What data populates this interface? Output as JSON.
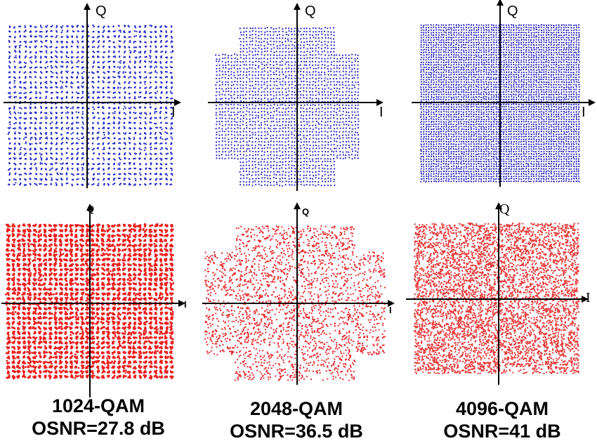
{
  "figure": {
    "background": "#ffffff",
    "axis_color": "#000000",
    "axis_labels": {
      "x": "I",
      "y": "Q"
    }
  },
  "chart_data": [
    {
      "type": "scatter",
      "title": "",
      "xlabel": "I",
      "ylabel": "Q",
      "modulation": "1024-QAM",
      "shape": "square",
      "grid_size": 32,
      "series": [
        {
          "name": "",
          "color": "#1f24c8",
          "kind": "ideal-constellation",
          "dots_per_point": 3
        }
      ],
      "caption": {
        "modulation": "1024-QAM",
        "osnr": "OSNR=27.8 dB"
      }
    },
    {
      "type": "scatter",
      "title": "",
      "xlabel": "I",
      "ylabel": "Q",
      "modulation": "2048-QAM",
      "shape": "cross",
      "grid_size": 48,
      "corner_cut": 8,
      "series": [
        {
          "name": "",
          "color": "#2626cc",
          "kind": "ideal-constellation",
          "dots_per_point": 1
        }
      ],
      "caption": {
        "modulation": "2048-QAM",
        "osnr": "OSNR=36.5 dB"
      }
    },
    {
      "type": "scatter",
      "title": "",
      "xlabel": "I",
      "ylabel": "Q",
      "modulation": "4096-QAM",
      "shape": "square",
      "grid_size": 64,
      "series": [
        {
          "name": "",
          "color": "#1717c2",
          "kind": "ideal-constellation",
          "dots_per_point": 2
        }
      ],
      "caption": {
        "modulation": "4096-QAM",
        "osnr": "OSNR=41 dB"
      }
    },
    {
      "type": "scatter",
      "title": "",
      "xlabel": "I",
      "ylabel": "Q",
      "modulation": "1024-QAM",
      "shape": "square",
      "grid_size": 32,
      "series": [
        {
          "name": "",
          "color": "#ee1c1c",
          "kind": "received-constellation",
          "dots_per_point": 6
        }
      ],
      "caption": {
        "modulation": "1024-QAM",
        "osnr": "OSNR=27.8 dB"
      }
    },
    {
      "type": "scatter",
      "title": "",
      "xlabel": "I",
      "ylabel": "Q",
      "modulation": "2048-QAM",
      "shape": "cross",
      "grid_size": 48,
      "corner_cut": 8,
      "series": [
        {
          "name": "",
          "color": "#e8262a",
          "kind": "received-constellation",
          "points": 2900
        }
      ],
      "caption": {
        "modulation": "2048-QAM",
        "osnr": "OSNR=36.5 dB"
      }
    },
    {
      "type": "scatter",
      "title": "",
      "xlabel": "I",
      "ylabel": "Q",
      "modulation": "4096-QAM",
      "shape": "square",
      "grid_size": 64,
      "series": [
        {
          "name": "",
          "color": "#e83a3a",
          "kind": "received-constellation",
          "points": 9000
        }
      ],
      "caption": {
        "modulation": "4096-QAM",
        "osnr": "OSNR=41 dB"
      }
    }
  ],
  "captions": [
    {
      "modulation": "1024-QAM",
      "osnr": "OSNR=27.8 dB"
    },
    {
      "modulation": "2048-QAM",
      "osnr": "OSNR=36.5 dB"
    },
    {
      "modulation": "4096-QAM",
      "osnr": "OSNR=41 dB"
    }
  ]
}
